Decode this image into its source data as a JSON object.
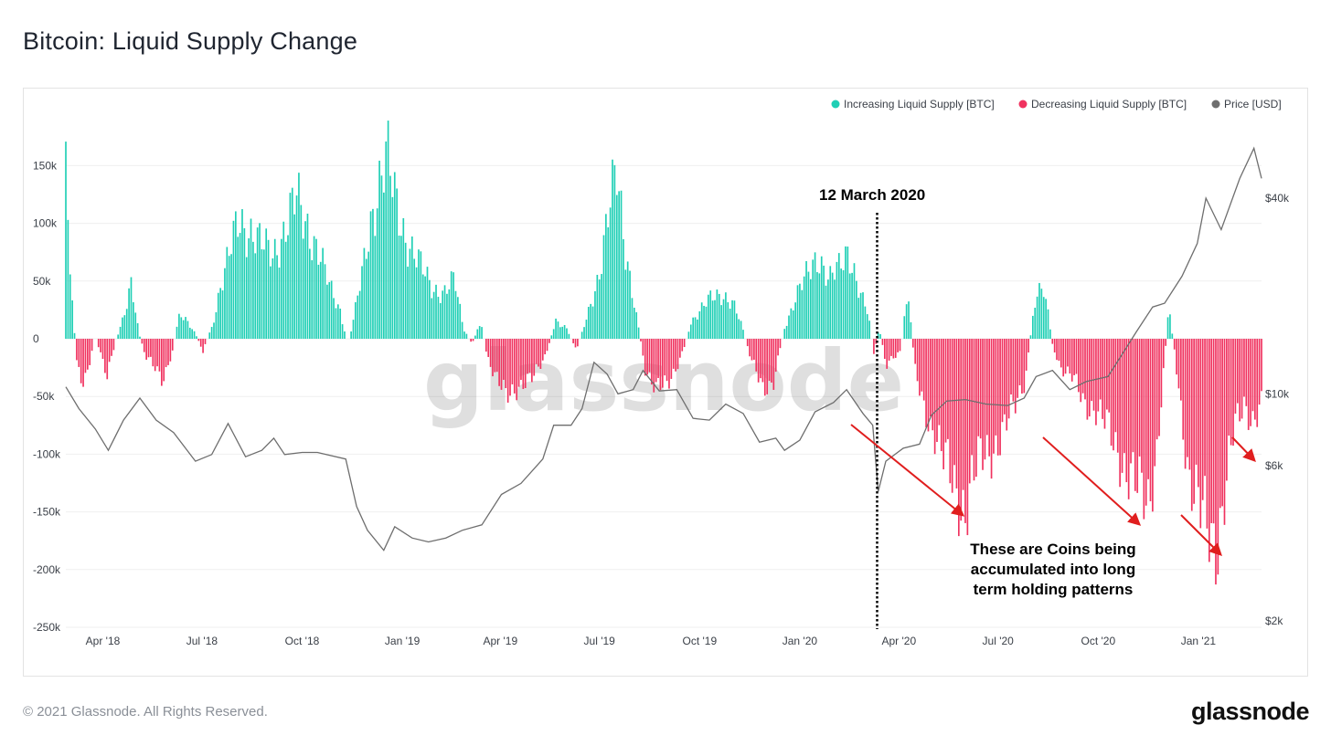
{
  "title": "Bitcoin: Liquid Supply Change",
  "footer": {
    "copyright": "© 2021 Glassnode. All Rights Reserved.",
    "brand": "glassnode"
  },
  "watermark": "glassnode",
  "colors": {
    "increasing": "#1fcfb5",
    "decreasing": "#f0325f",
    "price": "#6e6e6e",
    "annotation_arrow": "#e01e1e"
  },
  "chart_data": {
    "type": "bar",
    "title": "Bitcoin: Liquid Supply Change",
    "legend": {
      "placement": "top-right",
      "entries": [
        {
          "label": "Increasing Liquid Supply [BTC]",
          "color": "#1fcfb5"
        },
        {
          "label": "Decreasing Liquid Supply [BTC]",
          "color": "#f0325f"
        },
        {
          "label": "Price [USD]",
          "color": "#6e6e6e"
        }
      ]
    },
    "x_ticks": [
      "Apr '18",
      "Jul '18",
      "Oct '18",
      "Jan '19",
      "Apr '19",
      "Jul '19",
      "Oct '19",
      "Jan '20",
      "Apr '20",
      "Jul '20",
      "Oct '20",
      "Jan '21"
    ],
    "x_range": [
      "2018-02-26",
      "2021-02-28"
    ],
    "y_left": {
      "range": [
        -250000,
        175000
      ],
      "ticks": [
        {
          "value": 150000,
          "label": "150k"
        },
        {
          "value": 100000,
          "label": "100k"
        },
        {
          "value": 50000,
          "label": "50k"
        },
        {
          "value": 0,
          "label": "0"
        },
        {
          "value": -50000,
          "label": "-50k"
        },
        {
          "value": -100000,
          "label": "-100k"
        },
        {
          "value": -150000,
          "label": "-150k"
        },
        {
          "value": -200000,
          "label": "-200k"
        },
        {
          "value": -250000,
          "label": "-250k"
        }
      ]
    },
    "y_right": {
      "scale": "log",
      "range": [
        2000,
        60000
      ],
      "ticks": [
        {
          "value": 40000,
          "label": "$40k"
        },
        {
          "value": 10000,
          "label": "$10k"
        },
        {
          "value": 6000,
          "label": "$6k"
        },
        {
          "value": 2000,
          "label": "$2k"
        }
      ]
    },
    "grid": true,
    "supply_change_series": {
      "name": "Liquid Supply Change [BTC]",
      "points": [
        [
          "2018-02-26",
          140000
        ],
        [
          "2018-03-03",
          40000
        ],
        [
          "2018-03-08",
          -20000
        ],
        [
          "2018-03-15",
          -45000
        ],
        [
          "2018-03-25",
          3000
        ],
        [
          "2018-04-05",
          -30000
        ],
        [
          "2018-04-14",
          2000
        ],
        [
          "2018-04-20",
          20000
        ],
        [
          "2018-04-27",
          45000
        ],
        [
          "2018-05-04",
          5000
        ],
        [
          "2018-05-10",
          -15000
        ],
        [
          "2018-05-18",
          -25000
        ],
        [
          "2018-05-26",
          -35000
        ],
        [
          "2018-06-04",
          -10000
        ],
        [
          "2018-06-11",
          25000
        ],
        [
          "2018-06-18",
          15000
        ],
        [
          "2018-06-26",
          2000
        ],
        [
          "2018-07-02",
          -10000
        ],
        [
          "2018-07-10",
          10000
        ],
        [
          "2018-07-18",
          45000
        ],
        [
          "2018-07-26",
          70000
        ],
        [
          "2018-08-04",
          105000
        ],
        [
          "2018-08-14",
          95000
        ],
        [
          "2018-08-24",
          80000
        ],
        [
          "2018-09-04",
          75000
        ],
        [
          "2018-09-16",
          95000
        ],
        [
          "2018-09-26",
          120000
        ],
        [
          "2018-10-06",
          100000
        ],
        [
          "2018-10-16",
          75000
        ],
        [
          "2018-10-26",
          45000
        ],
        [
          "2018-11-05",
          25000
        ],
        [
          "2018-11-12",
          -5000
        ],
        [
          "2018-11-18",
          20000
        ],
        [
          "2018-11-26",
          60000
        ],
        [
          "2018-12-04",
          110000
        ],
        [
          "2018-12-12",
          140000
        ],
        [
          "2018-12-18",
          155000
        ],
        [
          "2018-12-24",
          125000
        ],
        [
          "2019-01-04",
          90000
        ],
        [
          "2019-01-16",
          65000
        ],
        [
          "2019-01-28",
          45000
        ],
        [
          "2019-02-08",
          40000
        ],
        [
          "2019-02-18",
          50000
        ],
        [
          "2019-02-26",
          10000
        ],
        [
          "2019-03-06",
          -5000
        ],
        [
          "2019-03-14",
          15000
        ],
        [
          "2019-03-20",
          -15000
        ],
        [
          "2019-03-28",
          -35000
        ],
        [
          "2019-04-06",
          -50000
        ],
        [
          "2019-04-18",
          -40000
        ],
        [
          "2019-05-01",
          -35000
        ],
        [
          "2019-05-12",
          -15000
        ],
        [
          "2019-05-22",
          15000
        ],
        [
          "2019-06-01",
          10000
        ],
        [
          "2019-06-10",
          -10000
        ],
        [
          "2019-06-20",
          20000
        ],
        [
          "2019-06-30",
          55000
        ],
        [
          "2019-07-10",
          110000
        ],
        [
          "2019-07-17",
          140000
        ],
        [
          "2019-07-25",
          80000
        ],
        [
          "2019-08-04",
          20000
        ],
        [
          "2019-08-12",
          -25000
        ],
        [
          "2019-08-22",
          -45000
        ],
        [
          "2019-09-01",
          -40000
        ],
        [
          "2019-09-09",
          -25000
        ],
        [
          "2019-09-16",
          -10000
        ],
        [
          "2019-09-23",
          15000
        ],
        [
          "2019-10-02",
          25000
        ],
        [
          "2019-10-12",
          35000
        ],
        [
          "2019-10-22",
          40000
        ],
        [
          "2019-11-01",
          30000
        ],
        [
          "2019-11-09",
          10000
        ],
        [
          "2019-11-18",
          -20000
        ],
        [
          "2019-11-28",
          -45000
        ],
        [
          "2019-12-08",
          -35000
        ],
        [
          "2019-12-18",
          10000
        ],
        [
          "2019-12-28",
          35000
        ],
        [
          "2020-01-08",
          55000
        ],
        [
          "2020-01-18",
          75000
        ],
        [
          "2020-01-28",
          50000
        ],
        [
          "2020-02-06",
          60000
        ],
        [
          "2020-02-15",
          80000
        ],
        [
          "2020-02-25",
          40000
        ],
        [
          "2020-03-04",
          20000
        ],
        [
          "2020-03-09",
          -15000
        ],
        [
          "2020-03-14",
          10000
        ],
        [
          "2020-03-20",
          -25000
        ],
        [
          "2020-03-27",
          -15000
        ],
        [
          "2020-04-03",
          -10000
        ],
        [
          "2020-04-09",
          45000
        ],
        [
          "2020-04-16",
          -30000
        ],
        [
          "2020-04-24",
          -60000
        ],
        [
          "2020-05-04",
          -80000
        ],
        [
          "2020-05-14",
          -110000
        ],
        [
          "2020-05-24",
          -135000
        ],
        [
          "2020-06-01",
          -145000
        ],
        [
          "2020-06-08",
          -120000
        ],
        [
          "2020-06-16",
          -105000
        ],
        [
          "2020-06-26",
          -95000
        ],
        [
          "2020-07-06",
          -80000
        ],
        [
          "2020-07-16",
          -60000
        ],
        [
          "2020-07-26",
          -35000
        ],
        [
          "2020-08-05",
          40000
        ],
        [
          "2020-08-12",
          50000
        ],
        [
          "2020-08-20",
          -5000
        ],
        [
          "2020-08-28",
          -25000
        ],
        [
          "2020-09-08",
          -35000
        ],
        [
          "2020-09-18",
          -55000
        ],
        [
          "2020-09-28",
          -60000
        ],
        [
          "2020-10-08",
          -75000
        ],
        [
          "2020-10-18",
          -95000
        ],
        [
          "2020-10-28",
          -115000
        ],
        [
          "2020-11-08",
          -135000
        ],
        [
          "2020-11-16",
          -140000
        ],
        [
          "2020-11-24",
          -95000
        ],
        [
          "2020-12-01",
          -20000
        ],
        [
          "2020-12-05",
          30000
        ],
        [
          "2020-12-10",
          -10000
        ],
        [
          "2020-12-16",
          -60000
        ],
        [
          "2020-12-24",
          -120000
        ],
        [
          "2021-01-02",
          -150000
        ],
        [
          "2021-01-10",
          -165000
        ],
        [
          "2021-01-18",
          -175000
        ],
        [
          "2021-01-26",
          -130000
        ],
        [
          "2021-02-03",
          -80000
        ],
        [
          "2021-02-12",
          -55000
        ],
        [
          "2021-02-20",
          -70000
        ],
        [
          "2021-02-28",
          -60000
        ]
      ]
    },
    "price_series": {
      "name": "Price [USD]",
      "points": [
        [
          "2018-02-26",
          10500
        ],
        [
          "2018-03-10",
          9000
        ],
        [
          "2018-03-25",
          7800
        ],
        [
          "2018-04-06",
          6700
        ],
        [
          "2018-04-20",
          8300
        ],
        [
          "2018-05-05",
          9700
        ],
        [
          "2018-05-20",
          8300
        ],
        [
          "2018-06-05",
          7600
        ],
        [
          "2018-06-25",
          6200
        ],
        [
          "2018-07-10",
          6500
        ],
        [
          "2018-07-25",
          8100
        ],
        [
          "2018-08-10",
          6400
        ],
        [
          "2018-08-25",
          6700
        ],
        [
          "2018-09-05",
          7300
        ],
        [
          "2018-09-15",
          6500
        ],
        [
          "2018-10-01",
          6600
        ],
        [
          "2018-10-15",
          6600
        ],
        [
          "2018-11-10",
          6300
        ],
        [
          "2018-11-20",
          4500
        ],
        [
          "2018-11-30",
          3800
        ],
        [
          "2018-12-15",
          3300
        ],
        [
          "2018-12-25",
          3900
        ],
        [
          "2019-01-10",
          3600
        ],
        [
          "2019-01-25",
          3500
        ],
        [
          "2019-02-10",
          3600
        ],
        [
          "2019-02-25",
          3800
        ],
        [
          "2019-03-15",
          3950
        ],
        [
          "2019-04-02",
          4900
        ],
        [
          "2019-04-20",
          5300
        ],
        [
          "2019-05-10",
          6300
        ],
        [
          "2019-05-20",
          8000
        ],
        [
          "2019-06-05",
          8000
        ],
        [
          "2019-06-15",
          9000
        ],
        [
          "2019-06-26",
          12500
        ],
        [
          "2019-07-08",
          11500
        ],
        [
          "2019-07-18",
          10000
        ],
        [
          "2019-08-01",
          10300
        ],
        [
          "2019-08-10",
          11800
        ],
        [
          "2019-08-25",
          10200
        ],
        [
          "2019-09-10",
          10300
        ],
        [
          "2019-09-25",
          8400
        ],
        [
          "2019-10-10",
          8300
        ],
        [
          "2019-10-25",
          9300
        ],
        [
          "2019-11-10",
          8700
        ],
        [
          "2019-11-25",
          7100
        ],
        [
          "2019-12-10",
          7300
        ],
        [
          "2019-12-18",
          6700
        ],
        [
          "2020-01-01",
          7200
        ],
        [
          "2020-01-15",
          8800
        ],
        [
          "2020-02-01",
          9400
        ],
        [
          "2020-02-13",
          10300
        ],
        [
          "2020-02-28",
          8700
        ],
        [
          "2020-03-08",
          8000
        ],
        [
          "2020-03-13",
          5000
        ],
        [
          "2020-03-20",
          6200
        ],
        [
          "2020-04-05",
          6800
        ],
        [
          "2020-04-20",
          7000
        ],
        [
          "2020-05-01",
          8600
        ],
        [
          "2020-05-15",
          9500
        ],
        [
          "2020-06-01",
          9600
        ],
        [
          "2020-06-20",
          9300
        ],
        [
          "2020-07-10",
          9200
        ],
        [
          "2020-07-25",
          9700
        ],
        [
          "2020-08-05",
          11300
        ],
        [
          "2020-08-20",
          11800
        ],
        [
          "2020-09-05",
          10300
        ],
        [
          "2020-09-20",
          10900
        ],
        [
          "2020-10-10",
          11300
        ],
        [
          "2020-10-21",
          12900
        ],
        [
          "2020-11-05",
          15500
        ],
        [
          "2020-11-20",
          18500
        ],
        [
          "2020-12-01",
          19000
        ],
        [
          "2020-12-17",
          23000
        ],
        [
          "2020-12-31",
          29000
        ],
        [
          "2021-01-08",
          40000
        ],
        [
          "2021-01-22",
          32000
        ],
        [
          "2021-02-08",
          46000
        ],
        [
          "2021-02-21",
          57000
        ],
        [
          "2021-02-28",
          46000
        ]
      ]
    },
    "annotations": {
      "event_line_date": "2020-03-12",
      "event_label": "12 March 2020",
      "note_lines": [
        "These are Coins being",
        "accumulated into long",
        "term holding patterns"
      ]
    }
  }
}
